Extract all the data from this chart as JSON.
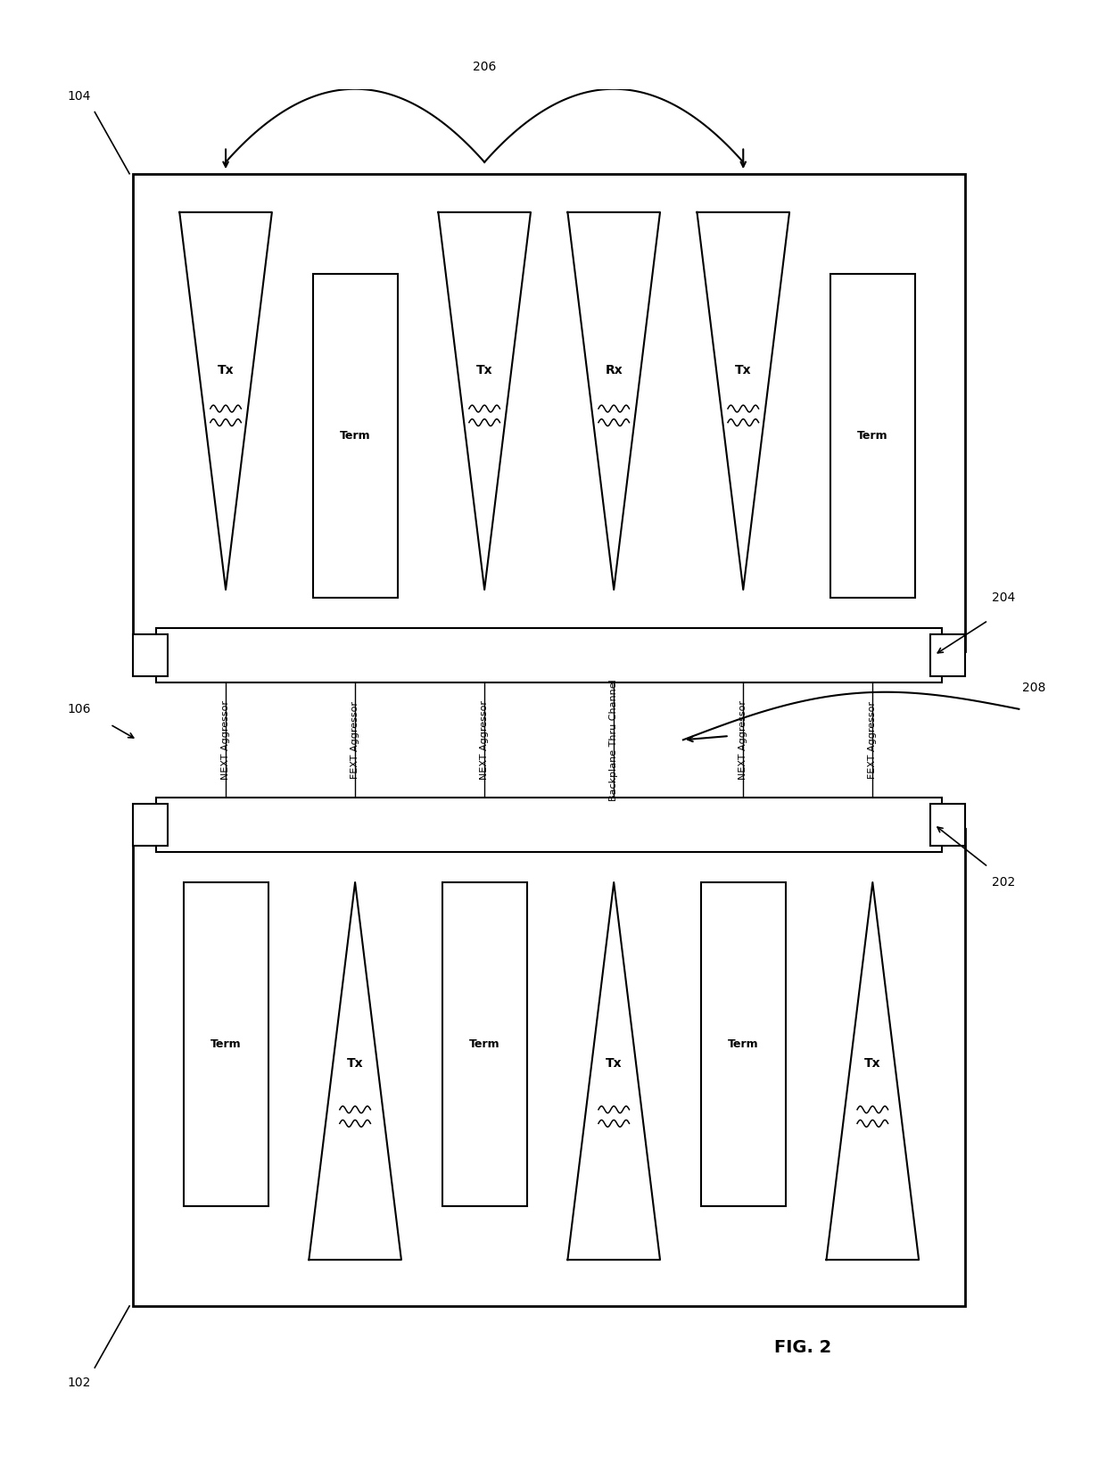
{
  "title": "FIG. 2",
  "bg_color": "#ffffff",
  "line_color": "#000000",
  "fig_width": 12.4,
  "fig_height": 16.5,
  "dpi": 100,
  "label_104": "104",
  "label_102": "102",
  "label_106": "106",
  "label_202": "202",
  "label_204": "204",
  "label_206": "206",
  "label_208": "208",
  "channel_labels": [
    "NEXT Aggressor",
    "FEXT Aggressor",
    "NEXT Aggressor",
    "Backplane Thru Channel",
    "NEXT Aggressor",
    "FEXT Aggressor"
  ],
  "bottom_card_components": [
    "Term",
    "Tx",
    "Term",
    "Tx",
    "Term",
    "Tx"
  ],
  "top_card_components": [
    "Tx",
    "Term",
    "Tx",
    "Rx",
    "Tx",
    "Term"
  ]
}
